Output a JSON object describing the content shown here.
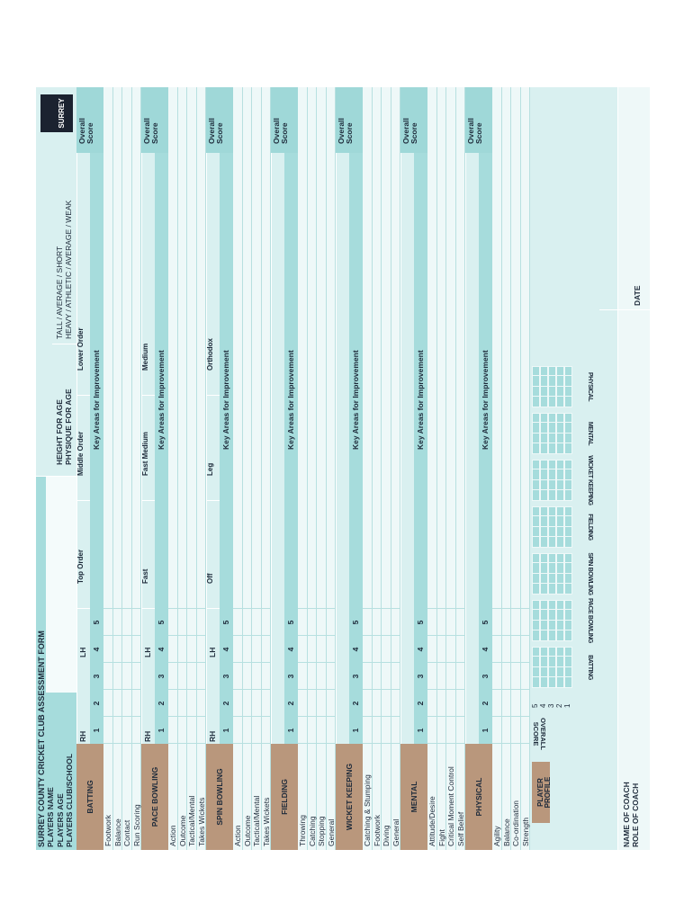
{
  "header": {
    "title": "SURREY COUNTY CRICKET CLUB ASSESSMENT FORM",
    "fields": [
      "PLAYERS NAME",
      "PLAYERS AGE",
      "PLAYERS CLUB/SCHOOL"
    ],
    "height_label": "HEIGHT FOR AGE",
    "height_options": "TALL / AVERAGE / SHORT",
    "physique_label": "PHYSIQUE FOR AGE",
    "physique_options": "HEAVY / ATHLETIC / AVERAGE / WEAK",
    "logo": "SURREY"
  },
  "sections": [
    {
      "name": "BATTING",
      "hands": [
        "RH",
        "LH"
      ],
      "scale": [
        1,
        2,
        3,
        4,
        5
      ],
      "categories": [
        "Top Order",
        "Middle Order",
        "Lower Order"
      ],
      "improvement": "Key Areas for Improvement",
      "overall": "Overall Score",
      "items": [
        "Footwork",
        "Balance",
        "Contact",
        "Run Scoring"
      ]
    },
    {
      "name": "PACE BOWLING",
      "hands": [
        "RH",
        "LH"
      ],
      "scale": [
        1,
        2,
        3,
        4,
        5
      ],
      "categories": [
        "Fast",
        "Fast Medium",
        "Medium"
      ],
      "improvement": "Key Areas for Improvement",
      "overall": "Overall Score",
      "items": [
        "Action",
        "Outcome",
        "Tactical/Mental",
        "Takes Wickets"
      ]
    },
    {
      "name": "SPIN BOWLING",
      "hands": [
        "RH",
        "LH"
      ],
      "scale": [
        1,
        2,
        3,
        4,
        5
      ],
      "categories": [
        "Off",
        "Leg",
        "Orthodox"
      ],
      "improvement": "Key Areas for Improvement",
      "overall": "Overall Score",
      "items": [
        "Action",
        "Outcome",
        "Tactical/Mental",
        "Takes Wickets"
      ]
    },
    {
      "name": "FIELDING",
      "scale": [
        1,
        2,
        3,
        4,
        5
      ],
      "improvement": "Key Areas for Improvement",
      "overall": "Overall Score",
      "items": [
        "Throwing",
        "Catching",
        "Stopping",
        "General"
      ]
    },
    {
      "name": "WICKET KEEPING",
      "scale": [
        1,
        2,
        3,
        4,
        5
      ],
      "improvement": "Key Areas for Improvement",
      "overall": "Overall Score",
      "items": [
        "Catching & Stumping",
        "Footwork",
        "Diving",
        "General"
      ]
    },
    {
      "name": "MENTAL",
      "scale": [
        1,
        2,
        3,
        4,
        5
      ],
      "improvement": "Key Areas for Improvement",
      "overall": "Overall Score",
      "items": [
        "Attitude/Desire",
        "Fight",
        "Critical Moment Control",
        "Self Belief"
      ]
    },
    {
      "name": "PHYSICAL",
      "scale": [
        1,
        2,
        3,
        4,
        5
      ],
      "improvement": "Key Areas for Improvement",
      "overall": "Overall Score",
      "items": [
        "Agility",
        "Balance",
        "Co-ordination",
        "Strength"
      ]
    }
  ],
  "profile": {
    "name": "PLAYER PROFILE",
    "axis": "OVERALL SCORE",
    "levels": [
      5,
      4,
      3,
      2,
      1
    ],
    "columns": [
      "BATTING",
      "PACE BOWLING",
      "SPIN BOWLING",
      "FIELDING",
      "WICKET KEEPING",
      "MENTAL",
      "PHYSICAL"
    ]
  },
  "footer": {
    "coach": "NAME OF COACH",
    "role": "ROLE OF COACH",
    "date": "DATE"
  }
}
